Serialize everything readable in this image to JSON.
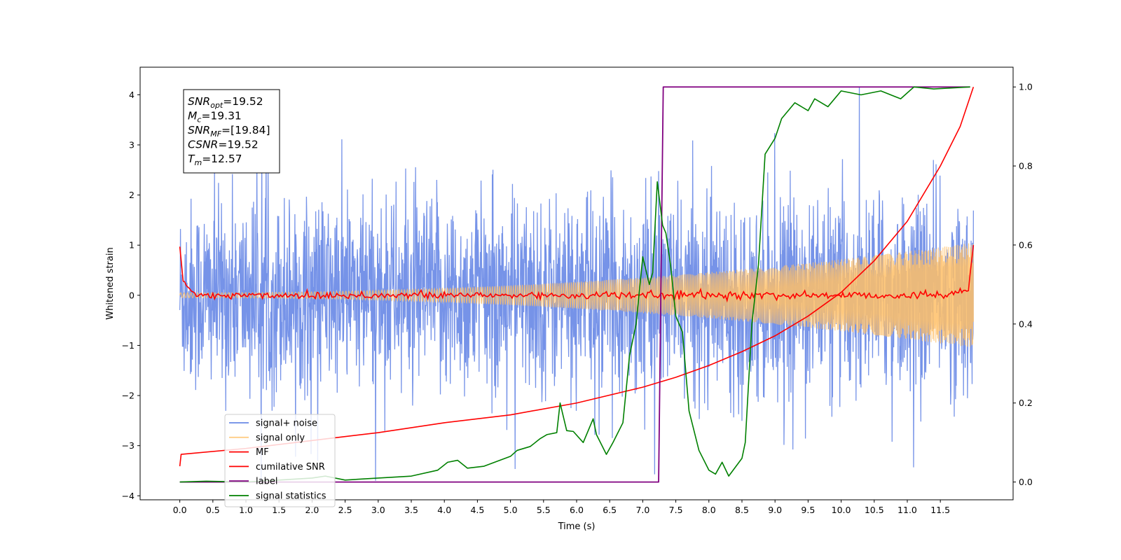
{
  "chart_data": {
    "type": "line",
    "xlabel": "Time (s)",
    "ylabel": "Whitened strain",
    "xlim": [
      -0.6,
      12.6
    ],
    "ylim": [
      -4.08,
      4.55
    ],
    "ylim_right": [
      -0.045,
      1.05
    ],
    "xticks": [
      "0.0",
      "0.5",
      "1.0",
      "1.5",
      "2.0",
      "2.5",
      "3.0",
      "3.5",
      "4.0",
      "4.5",
      "5.0",
      "5.5",
      "6.0",
      "6.5",
      "7.0",
      "7.5",
      "8.0",
      "8.5",
      "9.0",
      "9.5",
      "10.0",
      "10.5",
      "11.0",
      "11.5"
    ],
    "yticks": [
      "−4",
      "−3",
      "−2",
      "−1",
      "0",
      "1",
      "2",
      "3",
      "4"
    ],
    "yticks_right": [
      "0.0",
      "0.2",
      "0.4",
      "0.6",
      "0.8",
      "1.0"
    ],
    "grid": false,
    "legend_position": "lower-left",
    "annotation": {
      "lines": [
        {
          "base": "SNR",
          "sub": "opt",
          "value": "=19.52"
        },
        {
          "base": "M",
          "sub": "c",
          "value": "=19.31"
        },
        {
          "base": "SNR",
          "sub": "MF",
          "value": "=[19.84]"
        },
        {
          "base": "CSNR",
          "sub": "",
          "value": "=19.52"
        },
        {
          "base": "T",
          "sub": "m",
          "value": "=12.57"
        }
      ]
    },
    "series": [
      {
        "name": "signal+ noise",
        "color": "#6a8ae6",
        "axis": "left",
        "x_range": [
          0.0,
          12.0
        ],
        "amplitude_envelope": [
          1.6,
          2.8
        ],
        "peak": 4.18
      },
      {
        "name": "signal only",
        "color": "#ffc067",
        "axis": "left",
        "x_range": [
          0.0,
          12.0
        ],
        "envelope_start": 0.05,
        "envelope_end": 1.05
      },
      {
        "name": "MF",
        "color": "#ff0000",
        "axis": "left",
        "x_range": [
          0.0,
          12.0
        ],
        "start_value": 0.97,
        "end_value": 1.0
      },
      {
        "name": "cumilative SNR",
        "color": "#ff0000",
        "axis": "right",
        "x": [
          0.0,
          0.02,
          1.0,
          2.0,
          3.0,
          4.0,
          5.0,
          6.0,
          7.0,
          7.5,
          8.0,
          8.5,
          9.0,
          9.5,
          10.0,
          10.5,
          11.0,
          11.5,
          11.8,
          12.0
        ],
        "values": [
          0.04,
          0.07,
          0.085,
          0.105,
          0.125,
          0.15,
          0.17,
          0.2,
          0.24,
          0.265,
          0.295,
          0.33,
          0.37,
          0.42,
          0.48,
          0.56,
          0.66,
          0.8,
          0.9,
          1.0
        ]
      },
      {
        "name": "label",
        "color": "#800080",
        "axis": "right",
        "x": [
          0.0,
          7.24,
          7.31,
          11.95
        ],
        "values": [
          0.0,
          0.0,
          1.0,
          1.0
        ]
      },
      {
        "name": "signal statistics",
        "color": "#008000",
        "axis": "right",
        "x": [
          0.0,
          0.4,
          1.0,
          1.5,
          2.0,
          2.2,
          2.5,
          3.0,
          3.5,
          3.9,
          4.05,
          4.2,
          4.35,
          4.6,
          5.0,
          5.1,
          5.3,
          5.45,
          5.55,
          5.7,
          5.75,
          5.85,
          5.95,
          6.1,
          6.25,
          6.3,
          6.45,
          6.55,
          6.7,
          6.8,
          6.9,
          7.0,
          7.1,
          7.15,
          7.22,
          7.3,
          7.35,
          7.42,
          7.5,
          7.6,
          7.7,
          7.85,
          8.0,
          8.1,
          8.2,
          8.3,
          8.5,
          8.55,
          8.65,
          8.75,
          8.85,
          9.0,
          9.1,
          9.3,
          9.5,
          9.6,
          9.8,
          10.0,
          10.3,
          10.6,
          10.9,
          11.1,
          11.4,
          11.95
        ],
        "values": [
          0.0,
          0.002,
          0.0,
          0.005,
          0.01,
          0.015,
          0.005,
          0.01,
          0.015,
          0.03,
          0.05,
          0.055,
          0.035,
          0.04,
          0.065,
          0.08,
          0.09,
          0.11,
          0.12,
          0.125,
          0.2,
          0.13,
          0.128,
          0.1,
          0.16,
          0.12,
          0.07,
          0.1,
          0.15,
          0.32,
          0.4,
          0.57,
          0.5,
          0.53,
          0.76,
          0.65,
          0.63,
          0.55,
          0.42,
          0.38,
          0.18,
          0.08,
          0.03,
          0.02,
          0.05,
          0.015,
          0.06,
          0.1,
          0.4,
          0.55,
          0.83,
          0.87,
          0.92,
          0.96,
          0.94,
          0.97,
          0.95,
          0.99,
          0.98,
          0.99,
          0.97,
          1.0,
          0.995,
          1.0
        ]
      }
    ]
  }
}
